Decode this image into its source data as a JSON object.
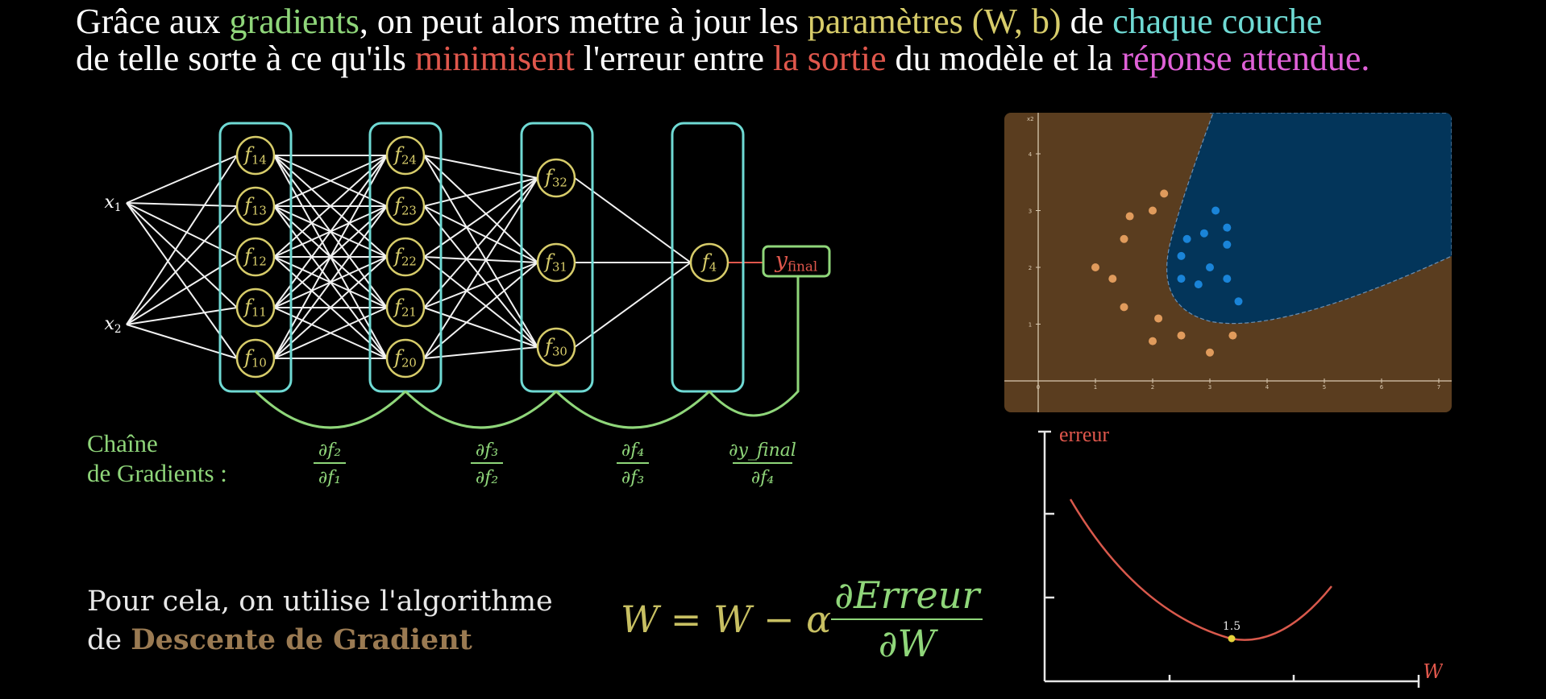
{
  "title": {
    "line1": {
      "p1": "Grâce aux ",
      "gradients": "gradients",
      "p2": ", on peut alors mettre à jour les ",
      "params": "paramètres (W, b)",
      "p3": " de ",
      "couche": "chaque couche"
    },
    "line2": {
      "p1": "de telle sorte à ce qu'ils ",
      "minimisent": "minimisent",
      "p2": " l'erreur entre ",
      "sortie": "la sortie",
      "p3": " du modèle et la ",
      "reponse": "réponse attendue."
    }
  },
  "network": {
    "inputs": [
      {
        "var": "x",
        "sub": "1"
      },
      {
        "var": "x",
        "sub": "2"
      }
    ],
    "layers": [
      {
        "nodes": [
          {
            "var": "f",
            "sub": "14"
          },
          {
            "var": "f",
            "sub": "13"
          },
          {
            "var": "f",
            "sub": "12"
          },
          {
            "var": "f",
            "sub": "11"
          },
          {
            "var": "f",
            "sub": "10"
          }
        ]
      },
      {
        "nodes": [
          {
            "var": "f",
            "sub": "24"
          },
          {
            "var": "f",
            "sub": "23"
          },
          {
            "var": "f",
            "sub": "22"
          },
          {
            "var": "f",
            "sub": "21"
          },
          {
            "var": "f",
            "sub": "20"
          }
        ]
      },
      {
        "nodes": [
          {
            "var": "f",
            "sub": "32"
          },
          {
            "var": "f",
            "sub": "31"
          },
          {
            "var": "f",
            "sub": "30"
          }
        ]
      },
      {
        "nodes": [
          {
            "var": "f",
            "sub": "4"
          }
        ]
      }
    ],
    "output": {
      "var": "y",
      "sub": "final"
    }
  },
  "chain": {
    "label_line1": "Chaîne",
    "label_line2": "de Gradients :",
    "fractions": [
      {
        "num": "∂f₂",
        "den": "∂f₁"
      },
      {
        "num": "∂f₃",
        "den": "∂f₂"
      },
      {
        "num": "∂f₄",
        "den": "∂f₃"
      },
      {
        "num": "∂y_final",
        "den": "∂f₄"
      }
    ]
  },
  "algo": {
    "line1": "Pour cela, on utilise l'algorithme",
    "line2_prefix": "de ",
    "line2_highlight": "Descente de Gradient"
  },
  "formula": {
    "lhs": "W = W − α",
    "num": "∂Erreur",
    "den": "∂W"
  },
  "scatter": {
    "y_axis_label": "x2",
    "x_ticks": [
      "0",
      "1",
      "2",
      "3",
      "4",
      "5",
      "6",
      "7"
    ],
    "y_ticks": [
      "1",
      "2",
      "3",
      "4"
    ],
    "class_a_color": "#e09b5c",
    "class_b_color": "#1a84d8",
    "region_a_color": "#5a3d1f",
    "region_b_color": "#03355a",
    "points_a": [
      [
        1.0,
        2.0
      ],
      [
        1.3,
        1.8
      ],
      [
        1.5,
        2.5
      ],
      [
        1.6,
        2.9
      ],
      [
        2.0,
        3.0
      ],
      [
        2.2,
        3.3
      ],
      [
        1.5,
        1.3
      ],
      [
        2.1,
        1.1
      ],
      [
        2.0,
        0.7
      ],
      [
        2.5,
        0.8
      ],
      [
        3.0,
        0.5
      ],
      [
        3.4,
        0.8
      ]
    ],
    "points_b": [
      [
        3.1,
        3.0
      ],
      [
        2.9,
        2.6
      ],
      [
        2.6,
        2.5
      ],
      [
        3.3,
        2.7
      ],
      [
        2.5,
        2.2
      ],
      [
        3.3,
        2.4
      ],
      [
        3.0,
        2.0
      ],
      [
        2.5,
        1.8
      ],
      [
        2.8,
        1.7
      ],
      [
        3.3,
        1.8
      ],
      [
        3.5,
        1.4
      ]
    ]
  },
  "loss": {
    "y_label": "erreur",
    "x_label": "W",
    "marker_label": "1.5",
    "curve_color": "#d9594c",
    "marker_color": "#e6d23a"
  }
}
